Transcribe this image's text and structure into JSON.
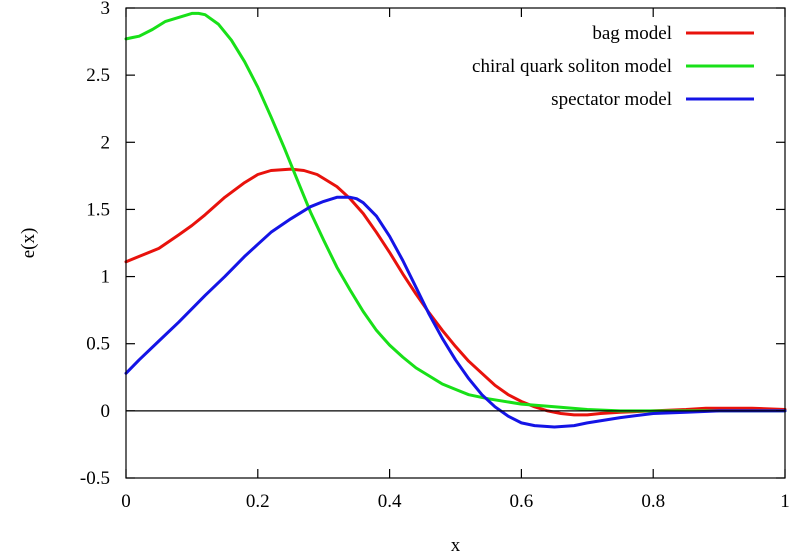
{
  "chart_data": {
    "type": "line",
    "title": "",
    "xlabel": "x",
    "ylabel": "e(x)",
    "xlim": [
      0,
      1
    ],
    "ylim": [
      -0.5,
      3
    ],
    "xticks": [
      0,
      0.2,
      0.4,
      0.6,
      0.8,
      1
    ],
    "xtick_labels": [
      "0",
      "0.2",
      "0.4",
      "0.6",
      "0.8",
      "1"
    ],
    "yticks": [
      -0.5,
      0,
      0.5,
      1,
      1.5,
      2,
      2.5,
      3
    ],
    "ytick_labels": [
      "-0.5",
      "0",
      "0.5",
      "1",
      "1.5",
      "2",
      "2.5",
      "3"
    ],
    "grid": false,
    "zero_line": true,
    "legend_position": "top-right",
    "series": [
      {
        "name": "bag model",
        "color": "#e8120c",
        "x": [
          0,
          0.02,
          0.05,
          0.08,
          0.1,
          0.12,
          0.15,
          0.18,
          0.2,
          0.22,
          0.25,
          0.27,
          0.29,
          0.3,
          0.32,
          0.34,
          0.36,
          0.38,
          0.4,
          0.42,
          0.44,
          0.46,
          0.48,
          0.5,
          0.52,
          0.54,
          0.56,
          0.58,
          0.6,
          0.62,
          0.64,
          0.66,
          0.68,
          0.7,
          0.72,
          0.75,
          0.8,
          0.85,
          0.88,
          0.9,
          0.95,
          1
        ],
        "y": [
          1.11,
          1.15,
          1.21,
          1.31,
          1.38,
          1.46,
          1.59,
          1.7,
          1.76,
          1.79,
          1.8,
          1.79,
          1.76,
          1.73,
          1.67,
          1.58,
          1.47,
          1.33,
          1.18,
          1.02,
          0.87,
          0.73,
          0.6,
          0.48,
          0.37,
          0.28,
          0.19,
          0.12,
          0.07,
          0.03,
          0.0,
          -0.02,
          -0.03,
          -0.03,
          -0.02,
          -0.01,
          0.0,
          0.01,
          0.02,
          0.02,
          0.02,
          0.01
        ]
      },
      {
        "name": "chiral quark soliton model",
        "color": "#18e018",
        "x": [
          0,
          0.01,
          0.02,
          0.04,
          0.06,
          0.08,
          0.1,
          0.11,
          0.12,
          0.14,
          0.16,
          0.18,
          0.2,
          0.22,
          0.24,
          0.26,
          0.28,
          0.3,
          0.32,
          0.34,
          0.36,
          0.38,
          0.4,
          0.42,
          0.44,
          0.46,
          0.48,
          0.5,
          0.52,
          0.55,
          0.6,
          0.65,
          0.7,
          0.75,
          0.8,
          0.85,
          0.9,
          0.95,
          1
        ],
        "y": [
          2.77,
          2.78,
          2.79,
          2.84,
          2.9,
          2.93,
          2.96,
          2.96,
          2.95,
          2.88,
          2.76,
          2.6,
          2.41,
          2.19,
          1.96,
          1.72,
          1.48,
          1.27,
          1.07,
          0.9,
          0.74,
          0.6,
          0.49,
          0.4,
          0.32,
          0.26,
          0.2,
          0.16,
          0.12,
          0.09,
          0.05,
          0.03,
          0.01,
          0.0,
          0.0,
          0.0,
          0.0,
          0.0,
          0.0
        ]
      },
      {
        "name": "spectator model",
        "color": "#1414e6",
        "x": [
          0,
          0.02,
          0.05,
          0.08,
          0.1,
          0.12,
          0.15,
          0.18,
          0.2,
          0.22,
          0.25,
          0.28,
          0.3,
          0.32,
          0.34,
          0.35,
          0.36,
          0.38,
          0.4,
          0.42,
          0.44,
          0.46,
          0.48,
          0.5,
          0.52,
          0.54,
          0.56,
          0.58,
          0.6,
          0.62,
          0.65,
          0.68,
          0.7,
          0.75,
          0.8,
          0.85,
          0.9,
          0.95,
          1
        ],
        "y": [
          0.28,
          0.38,
          0.52,
          0.66,
          0.76,
          0.86,
          1.0,
          1.15,
          1.24,
          1.33,
          1.43,
          1.52,
          1.56,
          1.59,
          1.59,
          1.58,
          1.55,
          1.45,
          1.3,
          1.12,
          0.92,
          0.72,
          0.54,
          0.38,
          0.24,
          0.12,
          0.03,
          -0.04,
          -0.09,
          -0.11,
          -0.12,
          -0.11,
          -0.09,
          -0.05,
          -0.02,
          -0.01,
          0.0,
          0.0,
          0.0
        ]
      }
    ]
  }
}
